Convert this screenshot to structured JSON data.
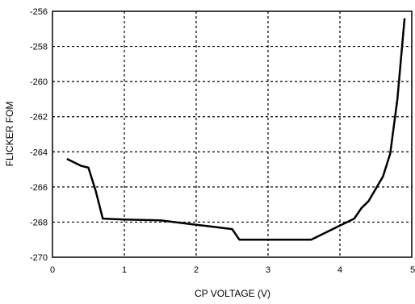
{
  "chart_data": {
    "type": "line",
    "title": "",
    "xlabel": "CP VOLTAGE (V)",
    "ylabel": "FLICKER FOM",
    "xlim": [
      0,
      5
    ],
    "ylim": [
      -270,
      -256
    ],
    "x_ticks": [
      "0",
      "1",
      "2",
      "3",
      "4",
      "5"
    ],
    "y_ticks": [
      "-256",
      "-258",
      "-260",
      "-262",
      "-264",
      "-266",
      "-268",
      "-270"
    ],
    "grid": true,
    "series": [
      {
        "x": [
          0.2,
          0.4,
          0.5,
          0.6,
          0.7,
          1.0,
          1.5,
          2.0,
          2.5,
          2.6,
          3.0,
          3.6,
          3.8,
          4.0,
          4.2,
          4.3,
          4.4,
          4.6,
          4.7,
          4.8,
          4.9
        ],
        "y": [
          -264.4,
          -264.8,
          -264.9,
          -266.2,
          -267.8,
          -267.85,
          -267.9,
          -268.15,
          -268.4,
          -269.0,
          -269.0,
          -269.0,
          -268.6,
          -268.2,
          -267.8,
          -267.2,
          -266.8,
          -265.4,
          -264.1,
          -261.0,
          -256.4
        ]
      }
    ]
  }
}
